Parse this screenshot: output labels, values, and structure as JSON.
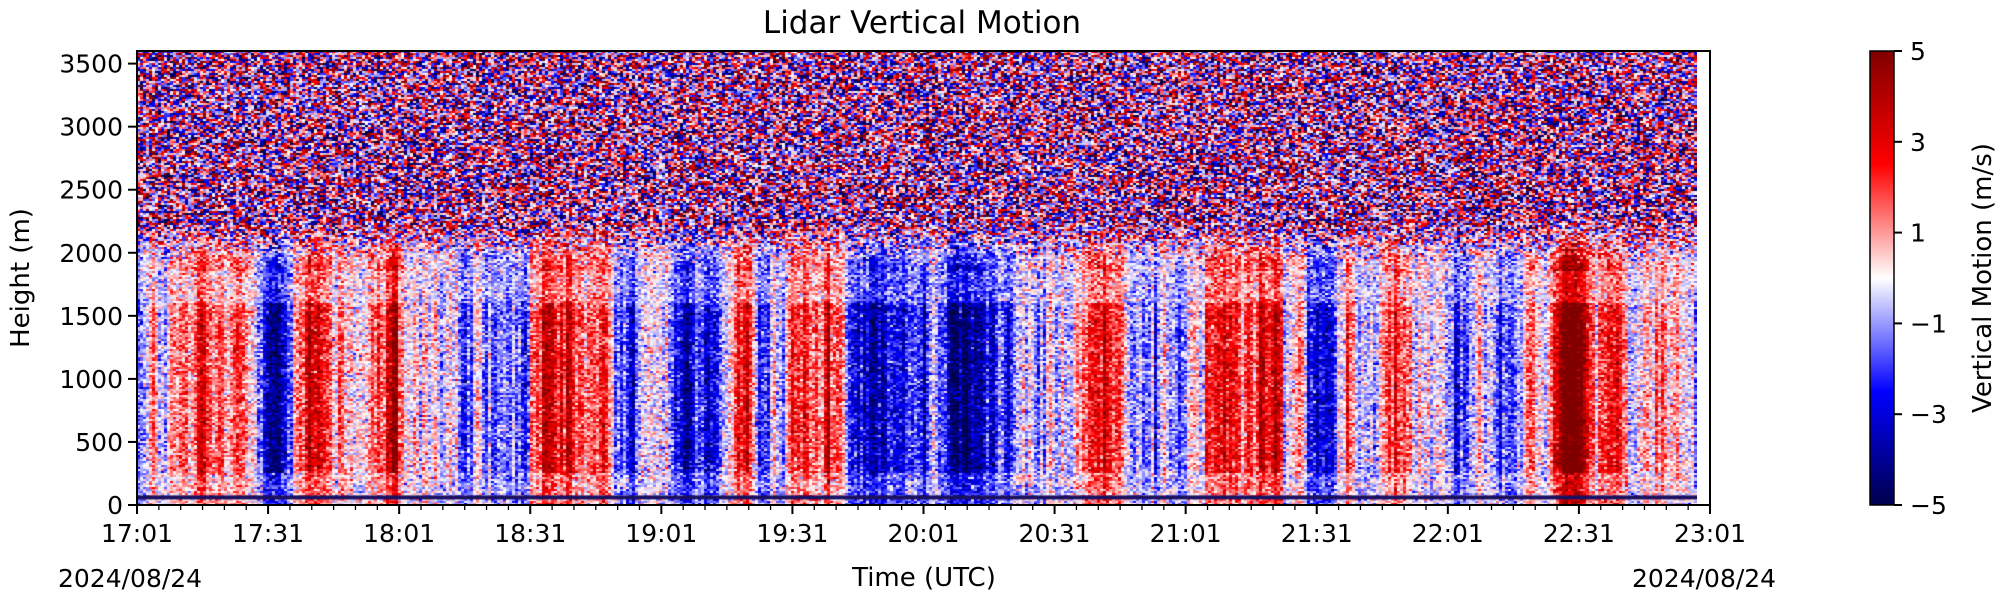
{
  "chart_data": {
    "type": "heatmap",
    "title": "Lidar Vertical Motion",
    "xlabel": "Time (UTC)",
    "ylabel": "Height (m)",
    "x_start_date": "2024/08/24",
    "x_end_date": "2024/08/24",
    "x_ticks": [
      "17:01",
      "17:31",
      "18:01",
      "18:31",
      "19:01",
      "19:31",
      "20:01",
      "20:31",
      "21:01",
      "21:31",
      "22:01",
      "22:31",
      "23:01"
    ],
    "x_range": [
      "17:01",
      "23:01"
    ],
    "y_ticks": [
      0,
      500,
      1000,
      1500,
      2000,
      2500,
      3000,
      3500
    ],
    "ylim": [
      0,
      3600
    ],
    "colorbar": {
      "label": "Vertical Motion (m/s)",
      "ticks": [
        5,
        3,
        1,
        -1,
        -3,
        -5
      ],
      "tick_labels": [
        "5",
        "3",
        "1",
        "−1",
        "−3",
        "−5"
      ],
      "range": [
        -5,
        5
      ],
      "colormap": "seismic"
    },
    "colors": {
      "negative_extreme": "#00004d",
      "negative": "#0000ff",
      "zero": "#ffffff",
      "positive": "#ff0000",
      "positive_extreme": "#800000"
    },
    "legend": "none",
    "grid": false,
    "features": {
      "noise_layer_above_height_m": 2100,
      "bottom_line_height_m": 60,
      "strong_updraft_periods": [
        "17:41-18:11",
        "19:31",
        "20:41-20:51",
        "21:11-21:21",
        "21:51-22:41"
      ],
      "strong_downdraft_periods": [
        "18:01-18:31",
        "18:51-19:21",
        "20:11-20:31",
        "21:31-21:51"
      ]
    }
  }
}
